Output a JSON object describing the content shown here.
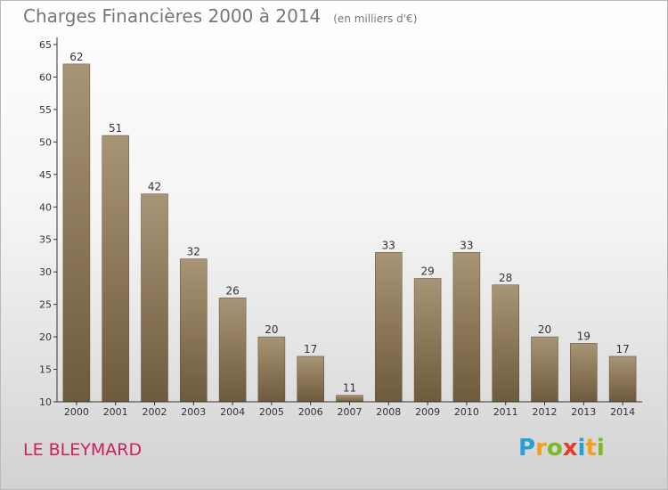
{
  "title": "Charges Financières 2000 à 2014",
  "subtitle": "(en milliers d'€)",
  "commune": "LE BLEYMARD",
  "logo": {
    "letters": [
      "P",
      "r",
      "o",
      "x",
      "i",
      "t",
      "i"
    ],
    "colors": [
      "#2a9fd6",
      "#f2a11e",
      "#7cb828",
      "#e53b2c",
      "#2a9fd6",
      "#f2a11e",
      "#7cb828"
    ]
  },
  "colors": {
    "bar_top": "#a89575",
    "bar_bottom": "#6e5a3c",
    "title": "#777777",
    "commune": "#cc2255"
  },
  "chart_data": {
    "type": "bar",
    "title": "Charges Financières 2000 à 2014",
    "subtitle": "(en milliers d'€)",
    "xlabel": "",
    "ylabel": "",
    "categories": [
      "2000",
      "2001",
      "2002",
      "2003",
      "2004",
      "2005",
      "2006",
      "2007",
      "2008",
      "2009",
      "2010",
      "2011",
      "2012",
      "2013",
      "2014"
    ],
    "values": [
      62,
      51,
      42,
      32,
      26,
      20,
      17,
      11,
      33,
      29,
      33,
      28,
      20,
      19,
      17
    ],
    "ylim": [
      10,
      65
    ],
    "yticks": [
      10,
      15,
      20,
      25,
      30,
      35,
      40,
      45,
      50,
      55,
      60,
      65
    ],
    "grid": false,
    "data_labels": true
  }
}
